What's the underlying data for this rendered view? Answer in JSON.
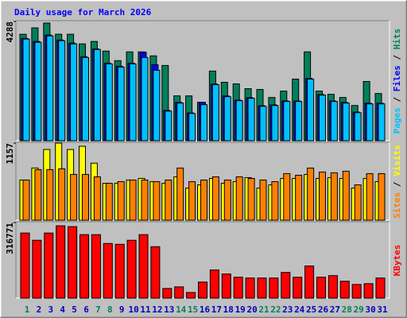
{
  "chart_data": [
    {
      "type": "bar",
      "title": "Daily usage for March 2026",
      "ylim": [
        0,
        4288
      ],
      "yticks": [
        4288
      ],
      "series": [
        {
          "name": "Hits",
          "color": "#00805c",
          "values": [
            3828,
            4058,
            4230,
            3828,
            3828,
            3482,
            3569,
            3223,
            2878,
            3194,
            3194,
            3051,
            2705,
            1612,
            1612,
            1381,
            2504,
            2101,
            2043,
            1871,
            1842,
            1554,
            1784,
            2216,
            3194,
            1784,
            1669,
            1554,
            1266,
            2130,
            1698
          ]
        },
        {
          "name": "Files",
          "color": "#0000ff",
          "values": [
            3680,
            3570,
            3800,
            3620,
            3510,
            3020,
            3300,
            2790,
            2680,
            2790,
            3180,
            2734,
            1090,
            1380,
            1000,
            1381,
            2040,
            1610,
            1460,
            1550,
            1260,
            1290,
            1430,
            1430,
            2240,
            1660,
            1430,
            1380,
            1030,
            1350,
            1350
          ]
        },
        {
          "name": "Pages",
          "color": "#00c0ff",
          "values": [
            3655,
            3540,
            3770,
            3597,
            3482,
            2993,
            3281,
            2763,
            2648,
            2763,
            2993,
            2533,
            1065,
            1353,
            978,
            1295,
            2014,
            1583,
            1439,
            1525,
            1237,
            1266,
            1410,
            1410,
            2216,
            1640,
            1410,
            1353,
            1007,
            1324,
            1324
          ]
        }
      ]
    },
    {
      "type": "bar",
      "ylim": [
        0,
        1157
      ],
      "yticks": [
        1157
      ],
      "series": [
        {
          "name": "Visits",
          "color": "#ffff00",
          "values": [
            603,
            783,
            1061,
            1157,
            1061,
            1109,
            856,
            554,
            554,
            603,
            627,
            579,
            554,
            651,
            482,
            530,
            627,
            554,
            579,
            639,
            482,
            530,
            627,
            627,
            687,
            627,
            639,
            627,
            482,
            627,
            579
          ]
        },
        {
          "name": "Sites",
          "color": "#ff8000",
          "values": [
            603,
            759,
            759,
            771,
            687,
            687,
            651,
            554,
            579,
            603,
            603,
            579,
            603,
            783,
            579,
            603,
            651,
            603,
            651,
            627,
            603,
            579,
            699,
            675,
            783,
            723,
            711,
            735,
            530,
            699,
            699
          ]
        }
      ]
    },
    {
      "type": "bar",
      "ylim": [
        0,
        316771
      ],
      "yticks": [
        316771
      ],
      "categories": [
        "1",
        "2",
        "3",
        "4",
        "5",
        "6",
        "7",
        "8",
        "9",
        "10",
        "11",
        "12",
        "13",
        "14",
        "15",
        "16",
        "17",
        "18",
        "19",
        "20",
        "21",
        "22",
        "23",
        "24",
        "25",
        "26",
        "27",
        "28",
        "29",
        "30",
        "31"
      ],
      "category_colors": [
        "#00805c",
        "#0000c0",
        "#0000c0",
        "#0000c0",
        "#0000c0",
        "#0000c0",
        "#00805c",
        "#00805c",
        "#0000c0",
        "#0000c0",
        "#0000c0",
        "#0000c0",
        "#0000c0",
        "#00805c",
        "#00805c",
        "#0000c0",
        "#0000c0",
        "#0000c0",
        "#0000c0",
        "#0000c0",
        "#00805c",
        "#00805c",
        "#0000c0",
        "#0000c0",
        "#0000c0",
        "#0000c0",
        "#0000c0",
        "#00805c",
        "#00805c",
        "#0000c0",
        "#0000c0"
      ],
      "series": [
        {
          "name": "KBytes",
          "color": "#ff0000",
          "values": [
            272962,
            242632,
            272962,
            303290,
            299920,
            266222,
            266222,
            229152,
            225782,
            242632,
            266222,
            215672,
            40439,
            47179,
            23589,
            67398,
            117947,
            101097,
            87617,
            84247,
            84247,
            84247,
            107837,
            87617,
            134796,
            87617,
            94357,
            70768,
            57288,
            60658,
            84247
          ]
        }
      ]
    }
  ]
}
